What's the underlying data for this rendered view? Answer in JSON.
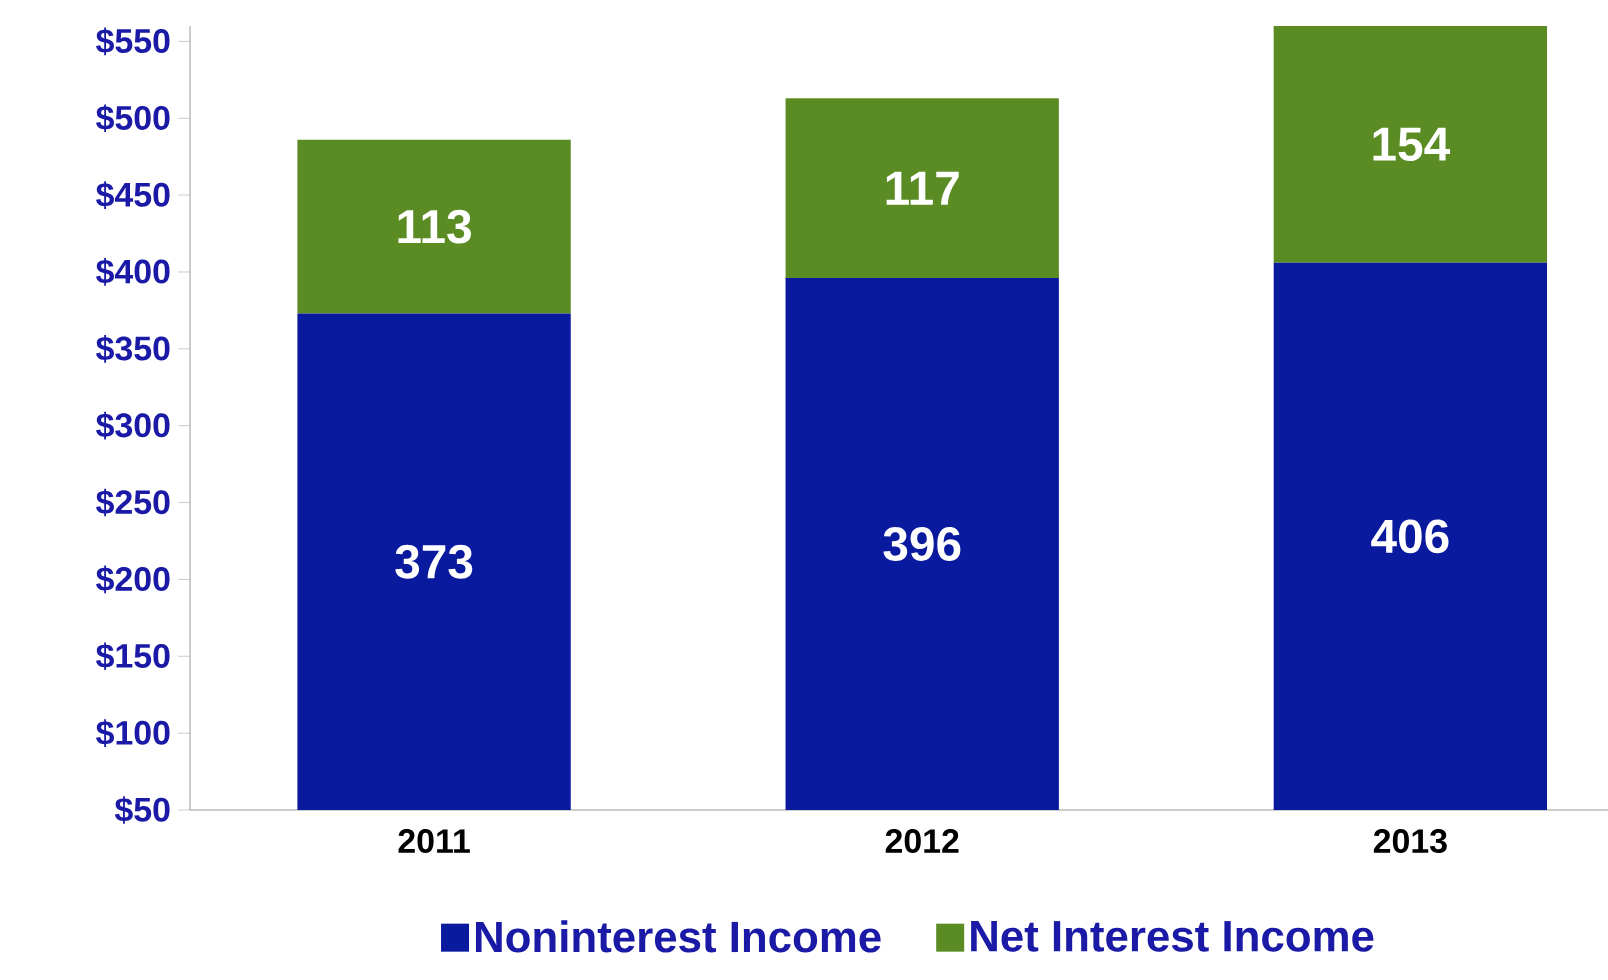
{
  "chart_data": {
    "type": "bar",
    "stacked": true,
    "categories": [
      "2011",
      "2012",
      "2013"
    ],
    "series": [
      {
        "name": "Noninterest Income",
        "color": "#0a1a9e",
        "values": [
          373,
          396,
          406
        ]
      },
      {
        "name": "Net Interest Income",
        "color": "#5b8c24",
        "values": [
          113,
          117,
          154
        ]
      }
    ],
    "ylim": [
      50,
      560
    ],
    "yticks": [
      {
        "value": 50,
        "label": "$50"
      },
      {
        "value": 100,
        "label": "$100"
      },
      {
        "value": 150,
        "label": "$150"
      },
      {
        "value": 200,
        "label": "$200"
      },
      {
        "value": 250,
        "label": "$250"
      },
      {
        "value": 300,
        "label": "$300"
      },
      {
        "value": 350,
        "label": "$350"
      },
      {
        "value": 400,
        "label": "$400"
      },
      {
        "value": 450,
        "label": "$450"
      },
      {
        "value": 500,
        "label": "$500"
      },
      {
        "value": 550,
        "label": "$550"
      }
    ],
    "data_labels": true,
    "legend": "bottom",
    "grid": false
  }
}
